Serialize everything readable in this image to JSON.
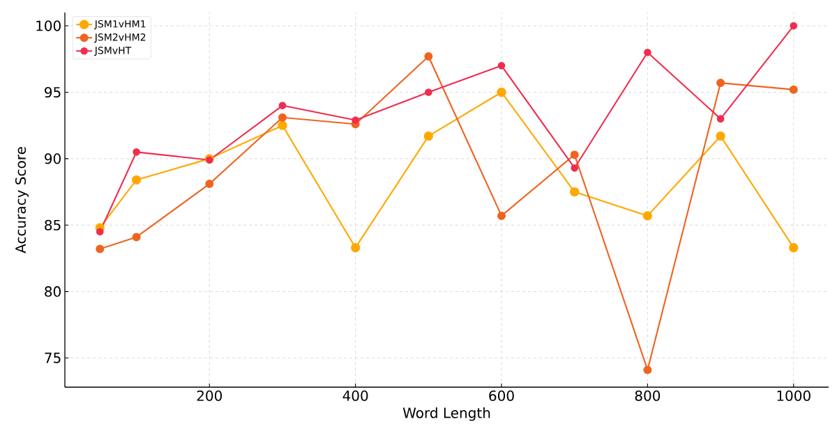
{
  "chart_data": {
    "type": "line",
    "xlabel": "Word Length",
    "ylabel": "Accuracy Score",
    "x": [
      50,
      100,
      200,
      300,
      400,
      500,
      600,
      700,
      800,
      900,
      1000
    ],
    "series": [
      {
        "name": "JSM1vHM1",
        "color": "#ffa800",
        "values": [
          84.8,
          88.4,
          90.0,
          92.5,
          83.3,
          91.7,
          95.0,
          87.5,
          85.7,
          91.7,
          83.3
        ]
      },
      {
        "name": "JSM2vHM2",
        "color": "#ef6420",
        "values": [
          83.2,
          84.1,
          88.1,
          93.1,
          92.6,
          97.7,
          85.7,
          90.3,
          74.1,
          95.7,
          95.2
        ]
      },
      {
        "name": "JSMvHT",
        "color": "#f02d50",
        "values": [
          84.5,
          90.5,
          89.9,
          94.0,
          92.9,
          95.0,
          97.0,
          89.3,
          98.0,
          93.0,
          100.0
        ]
      }
    ],
    "xlim": [
      2,
      1048
    ],
    "ylim": [
      72.8,
      101.0
    ],
    "xticks": [
      200,
      400,
      600,
      800,
      1000
    ],
    "yticks": [
      75,
      80,
      85,
      90,
      95,
      100
    ],
    "grid": true,
    "legend": "top left",
    "marker": "circle",
    "line_style": "solid"
  }
}
